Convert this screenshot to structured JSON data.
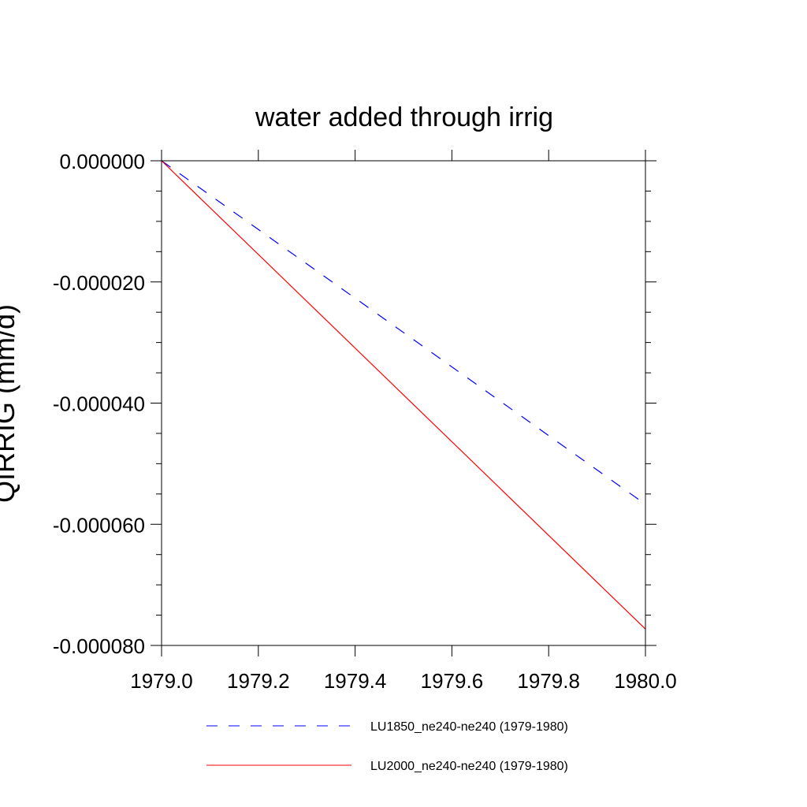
{
  "chart_data": {
    "type": "line",
    "title": "water added through irrig",
    "xlabel": "",
    "ylabel": "QIRRIG  (mm/d)",
    "xlim": [
      1979.0,
      1980.0
    ],
    "ylim": [
      -8e-05,
      0.0
    ],
    "x_ticks": [
      1979.0,
      1979.2,
      1979.4,
      1979.6,
      1979.8,
      1980.0
    ],
    "x_tick_labels": [
      "1979.0",
      "1979.2",
      "1979.4",
      "1979.6",
      "1979.8",
      "1980.0"
    ],
    "y_ticks": [
      0.0,
      -2e-05,
      -4e-05,
      -6e-05,
      -8e-05
    ],
    "y_tick_labels": [
      "0.000000",
      "-0.000020",
      "-0.000040",
      "-0.000060",
      "-0.000080"
    ],
    "grid": false,
    "legend_position": "bottom",
    "series": [
      {
        "name": "LU1850_ne240-ne240 (1979-1980)",
        "color": "#0000ff",
        "style": "dashed",
        "x": [
          1979.0,
          1980.0
        ],
        "y": [
          0.0,
          -5.67e-05
        ]
      },
      {
        "name": "LU2000_ne240-ne240 (1979-1980)",
        "color": "#ff0000",
        "style": "solid",
        "x": [
          1979.0,
          1980.0
        ],
        "y": [
          0.0,
          -7.73e-05
        ]
      }
    ]
  }
}
